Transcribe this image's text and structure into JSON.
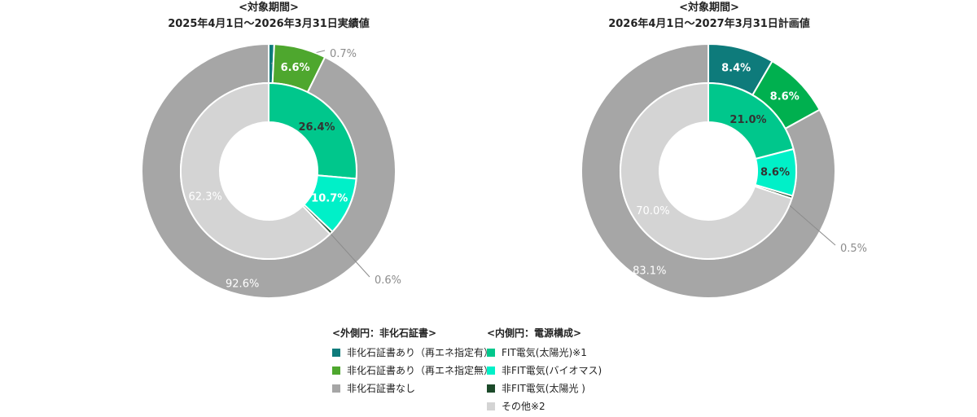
{
  "chart_data": [
    {
      "type": "pie",
      "title": "<対象期間>",
      "subtitle": "2025年4月1日～2026年3月31日実績値",
      "outer": {
        "series_name": "外側円：非化石証書",
        "values": [
          0.7,
          6.6,
          92.6
        ],
        "labels": [
          "0.7%",
          "6.6%",
          "92.6%"
        ]
      },
      "inner": {
        "series_name": "内側円：電源構成",
        "values": [
          26.4,
          10.7,
          0.6,
          62.3
        ],
        "labels": [
          "26.4%",
          "10.7%",
          "0.6%",
          "62.3%"
        ]
      }
    },
    {
      "type": "pie",
      "title": "<対象期間>",
      "subtitle": "2026年4月1日～2027年3月31日計画値",
      "outer": {
        "series_name": "外側円：非化石証書",
        "values": [
          8.4,
          8.6,
          83.1
        ],
        "labels": [
          "8.4%",
          "8.6%",
          "83.1%"
        ]
      },
      "inner": {
        "series_name": "内側円：電源構成",
        "values": [
          21.0,
          8.6,
          0.5,
          70.0
        ],
        "labels": [
          "21.0%",
          "8.6%",
          "0.5%",
          "70.0%"
        ]
      }
    }
  ],
  "legend": {
    "outer": {
      "heading": "<外側円：非化石証書>",
      "items": [
        {
          "label": "非化石証書あり（再エネ指定有）",
          "color": "#0e7b7b"
        },
        {
          "label": "非化石証書あり（再エネ指定無）",
          "color": "#4ea72e"
        },
        {
          "label": "非化石証書なし",
          "color": "#a6a6a6"
        }
      ]
    },
    "inner": {
      "heading": "<内側円：電源構成>",
      "items": [
        {
          "label": "FIT電気(太陽光)※1",
          "color": "#00c78c"
        },
        {
          "label": "非FIT電気(バイオマス)",
          "color": "#00f0c8"
        },
        {
          "label": "非FIT電気(太陽光 )",
          "color": "#1c4a2a"
        },
        {
          "label": "その他※2",
          "color": "#d4d4d4"
        }
      ]
    }
  },
  "colors": {
    "outer_left": [
      "#0e7b7b",
      "#4ea72e",
      "#a6a6a6"
    ],
    "outer_right": [
      "#0e7b7b",
      "#00b04f",
      "#a6a6a6"
    ],
    "inner": [
      "#00c78c",
      "#00f0c8",
      "#1c4a2a",
      "#d4d4d4"
    ]
  }
}
